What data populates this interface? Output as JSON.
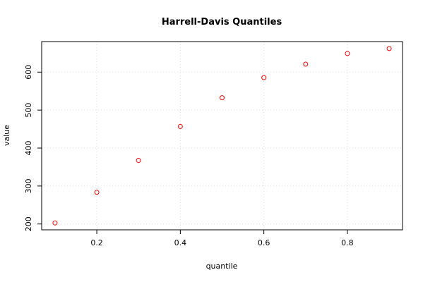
{
  "chart_data": {
    "type": "scatter",
    "title": "Harrell-Davis Quantiles",
    "x_label": "quantile",
    "y_label": "value",
    "x": [
      0.1,
      0.2,
      0.3,
      0.4,
      0.5,
      0.6,
      0.7,
      0.8,
      0.9
    ],
    "values": [
      202.8,
      283.4,
      367.4,
      456.8,
      532.6,
      585.4,
      621,
      649,
      662
    ],
    "color": "#ff0000",
    "xlim": [
      0.068,
      0.932
    ],
    "xticks": [
      0.2,
      0.4,
      0.6,
      0.8
    ],
    "ylim": [
      184.6,
      680.4
    ],
    "yticks": [
      200,
      300,
      400,
      500,
      600
    ],
    "grid": true
  }
}
